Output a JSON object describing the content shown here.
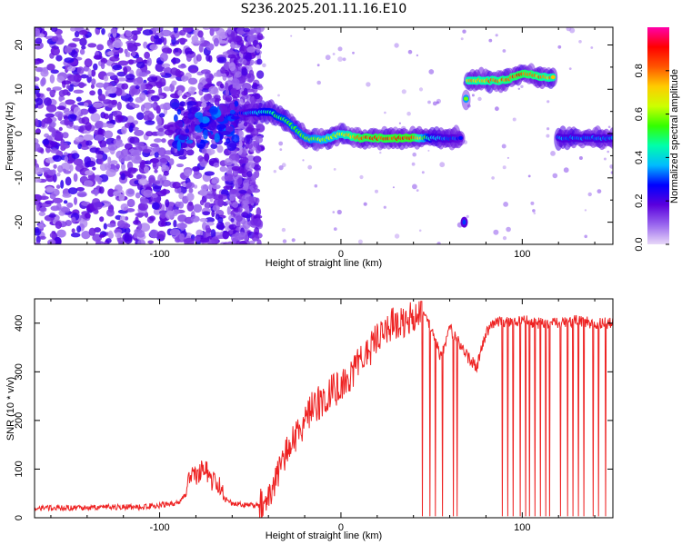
{
  "chart_data": [
    {
      "type": "heatmap",
      "title": "S236.2025.201.11.16.E10",
      "xlabel": "Height of straight line (km)",
      "ylabel": "Frequency (Hz)",
      "xlim": [
        -169,
        150
      ],
      "ylim": [
        -25,
        24
      ],
      "xticks": [
        -100,
        0,
        100
      ],
      "yticks": [
        -20,
        -10,
        0,
        10,
        20
      ],
      "colorbar": {
        "label": "Normalized spectral amplitude",
        "range": [
          0,
          1
        ],
        "ticks": [
          0.0,
          0.2,
          0.4,
          0.6,
          0.8
        ],
        "colormap": [
          "#e8d8f8",
          "#9966ee",
          "#5a00dd",
          "#0000ff",
          "#00bbff",
          "#00ffaa",
          "#33ff00",
          "#ccff00",
          "#ffcc00",
          "#ff5500",
          "#ff0000",
          "#ff00aa"
        ]
      },
      "ridge": [
        {
          "x": -85,
          "y": 1.5,
          "a": 0.25
        },
        {
          "x": -70,
          "y": 3.5,
          "a": 0.25
        },
        {
          "x": -55,
          "y": 4.5,
          "a": 0.3
        },
        {
          "x": -40,
          "y": 5,
          "a": 0.5
        },
        {
          "x": -30,
          "y": 3,
          "a": 0.55
        },
        {
          "x": -20,
          "y": -1,
          "a": 0.6
        },
        {
          "x": -10,
          "y": -1.5,
          "a": 0.65
        },
        {
          "x": 0,
          "y": 0,
          "a": 0.7
        },
        {
          "x": 10,
          "y": -1,
          "a": 0.9
        },
        {
          "x": 40,
          "y": -1,
          "a": 0.95
        },
        {
          "x": 50,
          "y": -1,
          "a": 0.4
        },
        {
          "x": 67,
          "y": -1,
          "a": 0.3
        },
        {
          "x": 70,
          "y": 12,
          "a": 0.8
        },
        {
          "x": 90,
          "y": 12,
          "a": 0.85
        },
        {
          "x": 100,
          "y": 13.5,
          "a": 0.9
        },
        {
          "x": 118,
          "y": 12.5,
          "a": 0.8
        },
        {
          "x": 120,
          "y": -1,
          "a": 0.35
        },
        {
          "x": 150,
          "y": -1,
          "a": 0.35
        }
      ],
      "spot": {
        "x": 68,
        "y": -20,
        "a": 0.3
      }
    },
    {
      "type": "line",
      "xlabel": "Height of straight line (km)",
      "ylabel": "SNR (10 * v/v)",
      "xlim": [
        -169,
        150
      ],
      "ylim": [
        0,
        450
      ],
      "xticks": [
        -100,
        0,
        100
      ],
      "yticks": [
        0,
        100,
        200,
        300,
        400
      ],
      "color": "#ee2222",
      "x": [
        -169,
        -150,
        -130,
        -110,
        -90,
        -80,
        -75,
        -70,
        -60,
        -50,
        -42,
        -38,
        -34,
        -30,
        -25,
        -20,
        -15,
        -10,
        -5,
        0,
        5,
        10,
        15,
        20,
        25,
        30,
        40,
        45,
        50,
        55,
        60,
        65,
        70,
        75,
        80,
        85,
        90,
        100,
        110,
        120,
        130,
        140,
        150
      ],
      "values": [
        20,
        20,
        22,
        22,
        30,
        70,
        80,
        50,
        30,
        25,
        25,
        60,
        100,
        130,
        170,
        200,
        230,
        240,
        260,
        270,
        290,
        320,
        340,
        370,
        390,
        400,
        410,
        420,
        390,
        330,
        390,
        360,
        330,
        310,
        380,
        405,
        400,
        405,
        400,
        400,
        405,
        400,
        400
      ],
      "dropouts": [
        45,
        49,
        52,
        56,
        62,
        64,
        89,
        92,
        95,
        99,
        102,
        104,
        107,
        110,
        113,
        115,
        121,
        125,
        128,
        131,
        134,
        139,
        142,
        146
      ]
    }
  ]
}
